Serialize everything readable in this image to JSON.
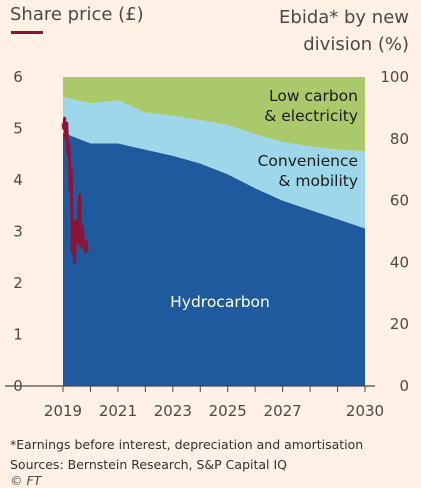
{
  "header": {
    "left_title": "Share price (£)",
    "right_title_line1": "Ebida* by new",
    "right_title_line2": "division (%)"
  },
  "footer": {
    "note": "*Earnings before interest, depreciation and amortisation",
    "sources": "Sources: Bernstein Research, S&P Capital IQ",
    "credit": "© FT"
  },
  "colors": {
    "background": "#fff1e5",
    "hydrocarbon": "#1f5a9c",
    "convenience": "#9ed6ea",
    "low_carbon": "#a9c96b",
    "share_price": "#8b1538",
    "axis": "#4d4845"
  },
  "chart_data": {
    "type": "area",
    "x_ticks": [
      "2019",
      "2021",
      "2023",
      "2025",
      "2027",
      "2030"
    ],
    "x_range": [
      2019,
      2030
    ],
    "left_axis": {
      "ticks": [
        "0",
        "1",
        "2",
        "3",
        "4",
        "5",
        "6"
      ],
      "range": [
        0,
        6
      ]
    },
    "right_axis": {
      "ticks": [
        "0",
        "20",
        "40",
        "60",
        "80",
        "100"
      ],
      "range": [
        0,
        100
      ]
    },
    "series": [
      {
        "name": "Hydrocarbon",
        "axis": "right",
        "color": "#1f5a9c",
        "x": [
          2019,
          2020,
          2021,
          2022,
          2023,
          2024,
          2025,
          2026,
          2027,
          2028,
          2029,
          2030
        ],
        "values": [
          82,
          78.5,
          78.5,
          76.5,
          74.5,
          72,
          68.5,
          64,
          60,
          57,
          54,
          51
        ]
      },
      {
        "name": "Convenience & mobility",
        "axis": "right",
        "color": "#9ed6ea",
        "x": [
          2019,
          2020,
          2021,
          2022,
          2023,
          2024,
          2025,
          2026,
          2027,
          2028,
          2029,
          2030
        ],
        "values": [
          11.5,
          13,
          14,
          12,
          13,
          14,
          16,
          17.5,
          19,
          20.5,
          22.5,
          25
        ]
      },
      {
        "name": "Low carbon & electricity",
        "axis": "right",
        "color": "#a9c96b",
        "x": [
          2019,
          2020,
          2021,
          2022,
          2023,
          2024,
          2025,
          2026,
          2027,
          2028,
          2029,
          2030
        ],
        "values": [
          6.5,
          8.5,
          7.5,
          11.5,
          12.5,
          14,
          15.5,
          18.5,
          21,
          22.5,
          23.5,
          24
        ]
      },
      {
        "name": "Share price",
        "axis": "left",
        "type": "line",
        "color": "#8b1538",
        "x": [
          2019.0,
          2019.03,
          2019.06,
          2019.1,
          2019.14,
          2019.18,
          2019.22,
          2019.26,
          2019.3,
          2019.34,
          2019.38,
          2019.42,
          2019.46,
          2019.5,
          2019.55,
          2019.6,
          2019.65,
          2019.7,
          2019.75,
          2019.8,
          2019.84,
          2019.88
        ],
        "values": [
          5.1,
          5.0,
          5.2,
          4.8,
          5.1,
          4.5,
          4.7,
          3.8,
          4.2,
          2.6,
          3.2,
          2.4,
          2.9,
          3.2,
          2.8,
          3.7,
          2.7,
          3.1,
          2.8,
          2.6,
          2.8,
          2.6
        ]
      }
    ],
    "labels": [
      {
        "text_lines": [
          "Low carbon",
          "& electricity"
        ],
        "series": "Low carbon & electricity"
      },
      {
        "text_lines": [
          "Convenience",
          "& mobility"
        ],
        "series": "Convenience & mobility"
      },
      {
        "text_lines": [
          "Hydrocarbon"
        ],
        "series": "Hydrocarbon"
      }
    ],
    "grid": false
  }
}
